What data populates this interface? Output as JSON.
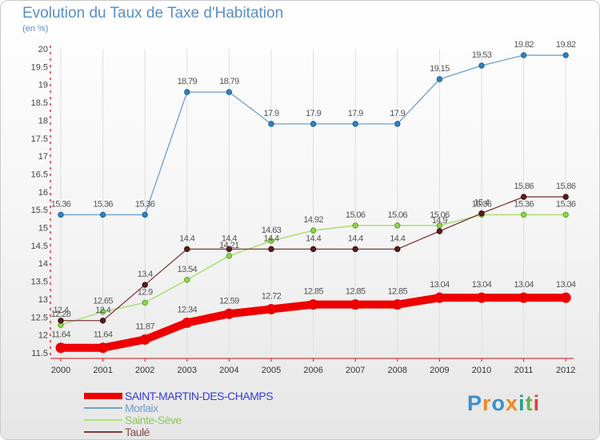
{
  "title": "Evolution du Taux de Taxe d'Habitation",
  "unit": "(en %)",
  "brand": {
    "text": "Proxiti",
    "letter_colors": [
      "#3a8fd1",
      "#f08a1c",
      "#3a8fd1",
      "#f08a1c",
      "#2a9d8f",
      "#6ab04c",
      "#d64541"
    ]
  },
  "chart_data": {
    "type": "line",
    "title": "Evolution du Taux de Taxe d'Habitation",
    "ylabel": "(en %)",
    "xlabel": "",
    "x": [
      "2000",
      "2001",
      "2002",
      "2003",
      "2004",
      "2005",
      "2006",
      "2007",
      "2008",
      "2009",
      "2010",
      "2011",
      "2012"
    ],
    "ylim": [
      11.5,
      20
    ],
    "yticks": [
      "11.5",
      "12",
      "12.5",
      "13",
      "13.5",
      "14",
      "14.5",
      "15",
      "15.5",
      "16",
      "16.5",
      "17",
      "17.5",
      "18",
      "18.5",
      "19",
      "19.5",
      "20"
    ],
    "legend_position": "bottom-left",
    "series": [
      {
        "name": "SAINT-MARTIN-DES-CHAMPS",
        "color": "#ee0000",
        "values": [
          11.64,
          11.64,
          11.87,
          12.34,
          12.59,
          12.72,
          12.85,
          12.85,
          12.85,
          13.04,
          13.04,
          13.04,
          13.04
        ],
        "labels": [
          "11.64",
          "11.64",
          "11.87",
          "12.34",
          "12.59",
          "12.72",
          "12.85",
          "12.85",
          "12.85",
          "13.04",
          "13.04",
          "13.04",
          "13.04"
        ]
      },
      {
        "name": "Morlaix",
        "color": "#6fa0cc",
        "values": [
          15.36,
          15.36,
          15.36,
          18.79,
          18.79,
          17.9,
          17.9,
          17.9,
          17.9,
          19.15,
          19.53,
          19.82,
          19.82
        ],
        "labels": [
          "15.36",
          "15.36",
          "15.36",
          "18.79",
          "18.79",
          "17.9",
          "17.9",
          "17.9",
          "17.9",
          "19.15",
          "19.53",
          "19.82",
          "19.82"
        ]
      },
      {
        "name": "Sainte-Sève",
        "color": "#aee07a",
        "values": [
          12.28,
          12.65,
          12.9,
          13.54,
          14.21,
          14.63,
          14.92,
          15.06,
          15.06,
          15.06,
          15.36,
          15.36,
          15.36
        ],
        "labels": [
          "12.28",
          "12.65",
          "12.9",
          "13.54",
          "14.21",
          "14.63",
          "14.92",
          "15.06",
          "15.06",
          "15.06",
          "15.36",
          "15.36",
          "15.36"
        ]
      },
      {
        "name": "Taulé",
        "color": "#7a3b3b",
        "values": [
          12.4,
          12.4,
          13.4,
          14.4,
          14.4,
          14.4,
          14.4,
          14.4,
          14.4,
          14.9,
          15.4,
          15.86,
          15.86
        ],
        "labels": [
          "12.4",
          "12.4",
          "13.4",
          "14.4",
          "14.4",
          "14.4",
          "14.4",
          "14.4",
          "14.4",
          "14.9",
          "15.4",
          "15.86",
          "15.86"
        ]
      }
    ]
  }
}
